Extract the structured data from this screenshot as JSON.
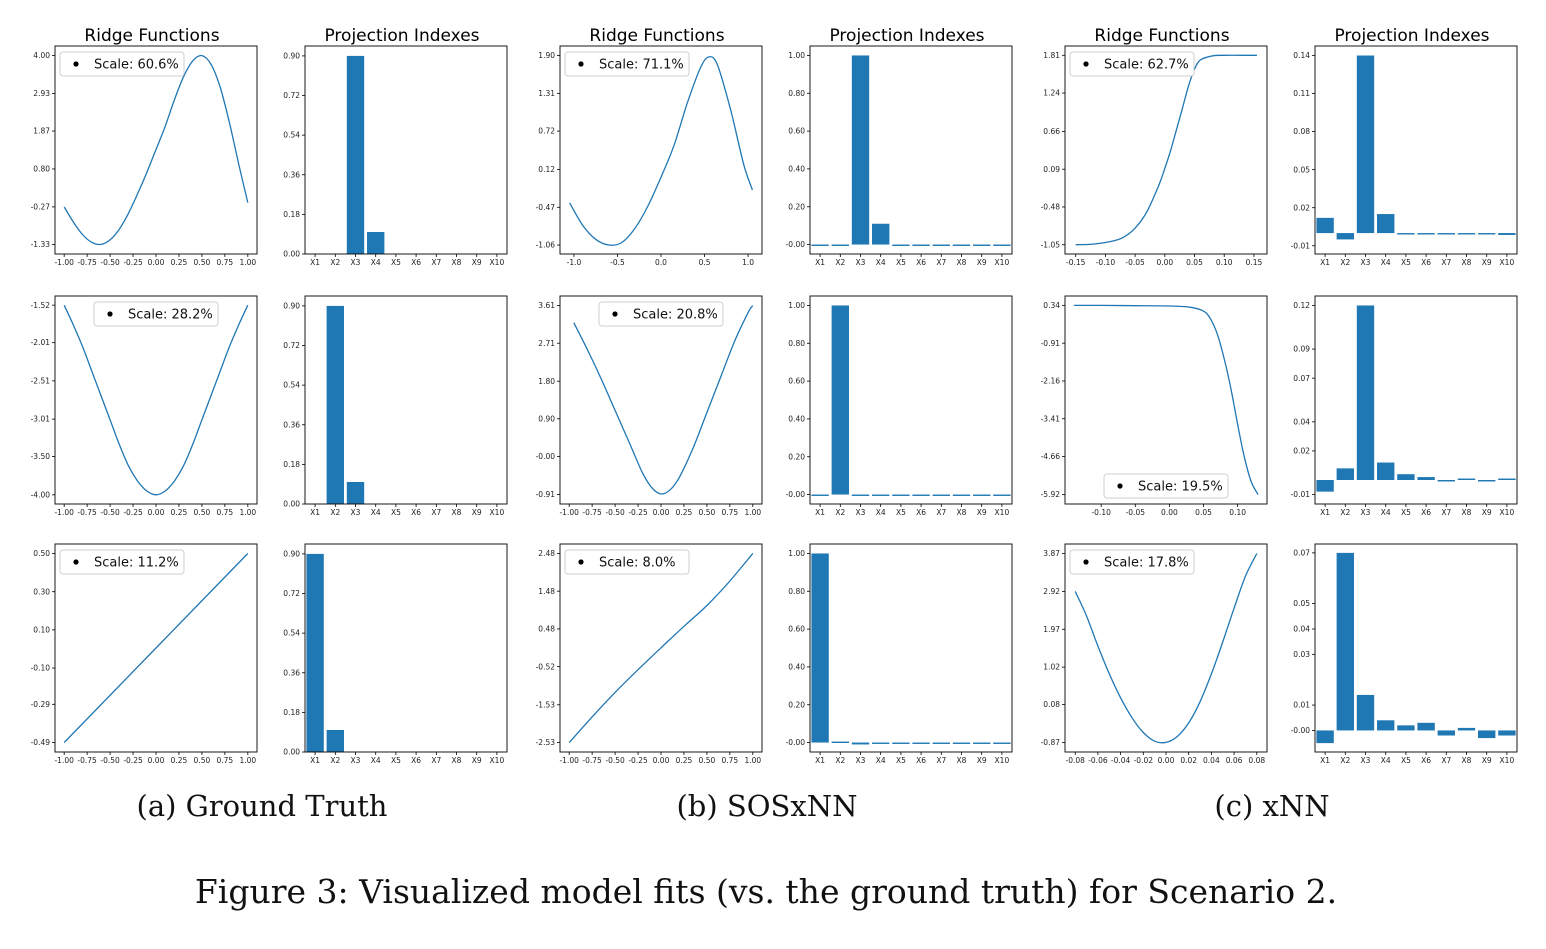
{
  "figure": {
    "caption": "Figure 3: Visualized model fits (vs. the ground truth) for Scenario 2.",
    "subcaptions": [
      "(a) Ground Truth",
      "(b) SOSxNN",
      "(c) xNN"
    ],
    "column_titles": [
      "Ridge Functions",
      "Projection Indexes",
      "Ridge Functions",
      "Projection Indexes",
      "Ridge Functions",
      "Projection Indexes"
    ]
  },
  "chart_data": [
    {
      "id": "gt-r1-ridge",
      "type": "line",
      "shape": "peak",
      "title": "Ridge Functions",
      "legend": "Scale: 60.6%",
      "legend_pos": "top-left",
      "x": [
        -1.0,
        -0.9,
        -0.8,
        -0.7,
        -0.6,
        -0.5,
        -0.4,
        -0.3,
        -0.2,
        -0.1,
        0.0,
        0.1,
        0.2,
        0.3,
        0.4,
        0.5,
        0.6,
        0.7,
        0.8,
        0.9,
        1.0
      ],
      "y": [
        -0.27,
        -0.7,
        -1.05,
        -1.27,
        -1.33,
        -1.2,
        -0.9,
        -0.45,
        0.1,
        0.7,
        1.35,
        2.0,
        2.75,
        3.4,
        3.85,
        4.0,
        3.75,
        3.1,
        2.1,
        0.95,
        -0.15
      ],
      "xticks": [
        -1.0,
        -0.75,
        -0.5,
        -0.25,
        0.0,
        0.25,
        0.5,
        0.75,
        1.0
      ],
      "xtick_labels": [
        "-1.00",
        "-0.75",
        "-0.50",
        "-0.25",
        "0.00",
        "0.25",
        "0.50",
        "0.75",
        "1.00"
      ],
      "yticks": [
        -1.33,
        -0.27,
        0.8,
        1.87,
        2.93,
        4.0
      ],
      "ytick_labels": [
        "-1.33",
        "-0.27",
        "0.80",
        "1.87",
        "2.93",
        "4.00"
      ],
      "xlim": [
        -1.1,
        1.1
      ],
      "ylim": [
        -1.6,
        4.27
      ]
    },
    {
      "id": "gt-r1-proj",
      "type": "bar",
      "title": "Projection Indexes",
      "categories": [
        "X1",
        "X2",
        "X3",
        "X4",
        "X5",
        "X6",
        "X7",
        "X8",
        "X9",
        "X10"
      ],
      "values": [
        0,
        0,
        0.9,
        0.1,
        0,
        0,
        0,
        0,
        0,
        0
      ],
      "yticks": [
        0.0,
        0.18,
        0.36,
        0.54,
        0.72,
        0.9
      ],
      "ytick_labels": [
        "0.00",
        "0.18",
        "0.36",
        "0.54",
        "0.72",
        "0.90"
      ],
      "ylim": [
        0,
        0.945
      ]
    },
    {
      "id": "sos-r1-ridge",
      "type": "line",
      "shape": "peak",
      "title": "Ridge Functions",
      "legend": "Scale: 71.1%",
      "legend_pos": "top-left",
      "x": [
        -1.05,
        -0.9,
        -0.75,
        -0.6,
        -0.45,
        -0.3,
        -0.15,
        0.0,
        0.15,
        0.3,
        0.45,
        0.55,
        0.65,
        0.8,
        0.95,
        1.05
      ],
      "y": [
        -0.4,
        -0.75,
        -0.97,
        -1.06,
        -1.02,
        -0.8,
        -0.45,
        0.0,
        0.5,
        1.15,
        1.7,
        1.88,
        1.75,
        1.05,
        0.2,
        -0.2
      ],
      "xticks": [
        -1.0,
        -0.5,
        0.0,
        0.5,
        1.0
      ],
      "xtick_labels": [
        "-1.0",
        "-0.5",
        "0.0",
        "0.5",
        "1.0"
      ],
      "yticks": [
        -1.06,
        -0.47,
        0.12,
        0.72,
        1.31,
        1.9
      ],
      "ytick_labels": [
        "-1.06",
        "-0.47",
        "0.12",
        "0.72",
        "1.31",
        "1.90"
      ],
      "xlim": [
        -1.16,
        1.16
      ],
      "ylim": [
        -1.2,
        2.05
      ]
    },
    {
      "id": "sos-r1-proj",
      "type": "bar",
      "title": "Projection Indexes",
      "categories": [
        "X1",
        "X2",
        "X3",
        "X4",
        "X5",
        "X6",
        "X7",
        "X8",
        "X9",
        "X10"
      ],
      "values": [
        0,
        0,
        1.0,
        0.11,
        0,
        0,
        0,
        0,
        0,
        0
      ],
      "yticks": [
        0.0,
        0.2,
        0.4,
        0.6,
        0.8,
        1.0
      ],
      "ytick_labels": [
        "-0.00",
        "0.20",
        "0.40",
        "0.60",
        "0.80",
        "1.00"
      ],
      "ylim": [
        -0.05,
        1.05
      ]
    },
    {
      "id": "xnn-r1-ridge",
      "type": "line",
      "shape": "sigmoid",
      "title": "Ridge Functions",
      "legend": "Scale: 62.7%",
      "legend_pos": "top-left",
      "x": [
        -0.15,
        -0.12,
        -0.09,
        -0.07,
        -0.05,
        -0.03,
        -0.01,
        0.0,
        0.01,
        0.02,
        0.03,
        0.04,
        0.05,
        0.06,
        0.08,
        0.1,
        0.13,
        0.155
      ],
      "y": [
        -1.05,
        -1.04,
        -1.0,
        -0.94,
        -0.8,
        -0.55,
        -0.15,
        0.1,
        0.38,
        0.7,
        1.02,
        1.35,
        1.6,
        1.74,
        1.8,
        1.81,
        1.81,
        1.81
      ],
      "xticks": [
        -0.15,
        -0.1,
        -0.05,
        0.0,
        0.05,
        0.1,
        0.15
      ],
      "xtick_labels": [
        "-0.15",
        "-0.10",
        "-0.05",
        "0.00",
        "0.05",
        "0.10",
        "0.15"
      ],
      "yticks": [
        -1.05,
        -0.48,
        0.09,
        0.66,
        1.24,
        1.81
      ],
      "ytick_labels": [
        "-1.05",
        "-0.48",
        "0.09",
        "0.66",
        "1.24",
        "1.81"
      ],
      "xlim": [
        -0.168,
        0.172
      ],
      "ylim": [
        -1.19,
        1.95
      ]
    },
    {
      "id": "xnn-r1-proj",
      "type": "bar",
      "title": "Projection Indexes",
      "categories": [
        "X1",
        "X2",
        "X3",
        "X4",
        "X5",
        "X6",
        "X7",
        "X8",
        "X9",
        "X10"
      ],
      "values": [
        0.012,
        -0.005,
        0.14,
        0.015,
        -0.001,
        -0.001,
        -0.0005,
        -0.001,
        -0.0005,
        -0.0015
      ],
      "yticks": [
        -0.01,
        0.02,
        0.05,
        0.08,
        0.11,
        0.14
      ],
      "ytick_labels": [
        "-0.01",
        "0.02",
        "0.05",
        "0.08",
        "0.11",
        "0.14"
      ],
      "ylim": [
        -0.0165,
        0.1475
      ]
    },
    {
      "id": "gt-r2-ridge",
      "type": "line",
      "shape": "valley",
      "title": "",
      "legend": "Scale: 28.2%",
      "legend_pos": "upper-center",
      "x": [
        -1.0,
        -0.9,
        -0.8,
        -0.7,
        -0.6,
        -0.5,
        -0.4,
        -0.3,
        -0.2,
        -0.1,
        0.0,
        0.1,
        0.2,
        0.3,
        0.4,
        0.5,
        0.6,
        0.7,
        0.8,
        0.9,
        1.0
      ],
      "y": [
        -1.52,
        -1.78,
        -2.06,
        -2.38,
        -2.7,
        -3.02,
        -3.34,
        -3.62,
        -3.82,
        -3.95,
        -4.0,
        -3.95,
        -3.82,
        -3.62,
        -3.34,
        -3.02,
        -2.7,
        -2.38,
        -2.06,
        -1.78,
        -1.52
      ],
      "xticks": [
        -1.0,
        -0.75,
        -0.5,
        -0.25,
        0.0,
        0.25,
        0.5,
        0.75,
        1.0
      ],
      "xtick_labels": [
        "-1.00",
        "-0.75",
        "-0.50",
        "-0.25",
        "0.00",
        "0.25",
        "0.50",
        "0.75",
        "1.00"
      ],
      "yticks": [
        -4.0,
        -3.5,
        -3.01,
        -2.51,
        -2.01,
        -1.52
      ],
      "ytick_labels": [
        "-4.00",
        "-3.50",
        "-3.01",
        "-2.51",
        "-2.01",
        "-1.52"
      ],
      "xlim": [
        -1.1,
        1.1
      ],
      "ylim": [
        -4.12,
        -1.4
      ]
    },
    {
      "id": "gt-r2-proj",
      "type": "bar",
      "title": "",
      "categories": [
        "X1",
        "X2",
        "X3",
        "X4",
        "X5",
        "X6",
        "X7",
        "X8",
        "X9",
        "X10"
      ],
      "values": [
        0,
        0.9,
        0.1,
        0,
        0,
        0,
        0,
        0,
        0,
        0
      ],
      "yticks": [
        0.0,
        0.18,
        0.36,
        0.54,
        0.72,
        0.9
      ],
      "ytick_labels": [
        "0.00",
        "0.18",
        "0.36",
        "0.54",
        "0.72",
        "0.90"
      ],
      "ylim": [
        0,
        0.945
      ]
    },
    {
      "id": "sos-r2-ridge",
      "type": "line",
      "shape": "valley",
      "title": "",
      "legend": "Scale: 20.8%",
      "legend_pos": "upper-center",
      "x": [
        -0.95,
        -0.8,
        -0.65,
        -0.5,
        -0.35,
        -0.2,
        -0.1,
        0.0,
        0.1,
        0.2,
        0.35,
        0.5,
        0.65,
        0.8,
        0.95,
        1.0
      ],
      "y": [
        3.2,
        2.55,
        1.85,
        1.1,
        0.35,
        -0.4,
        -0.75,
        -0.9,
        -0.8,
        -0.5,
        0.2,
        1.05,
        1.9,
        2.75,
        3.45,
        3.61
      ],
      "xticks": [
        -1.0,
        -0.75,
        -0.5,
        -0.25,
        0.0,
        0.25,
        0.5,
        0.75,
        1.0
      ],
      "xtick_labels": [
        "-1.00",
        "-0.75",
        "-0.50",
        "-0.25",
        "0.00",
        "0.25",
        "0.50",
        "0.75",
        "1.00"
      ],
      "yticks": [
        -0.91,
        0.0,
        0.9,
        1.8,
        2.71,
        3.61
      ],
      "ytick_labels": [
        "-0.91",
        "-0.00",
        "0.90",
        "1.80",
        "2.71",
        "3.61"
      ],
      "xlim": [
        -1.1,
        1.1
      ],
      "ylim": [
        -1.14,
        3.84
      ]
    },
    {
      "id": "sos-r2-proj",
      "type": "bar",
      "title": "",
      "categories": [
        "X1",
        "X2",
        "X3",
        "X4",
        "X5",
        "X6",
        "X7",
        "X8",
        "X9",
        "X10"
      ],
      "values": [
        0,
        1.0,
        0,
        0,
        0,
        0,
        0,
        0,
        0,
        0
      ],
      "yticks": [
        0.0,
        0.2,
        0.4,
        0.6,
        0.8,
        1.0
      ],
      "ytick_labels": [
        "-0.00",
        "0.20",
        "0.40",
        "0.60",
        "0.80",
        "1.00"
      ],
      "ylim": [
        -0.05,
        1.05
      ]
    },
    {
      "id": "xnn-r2-ridge",
      "type": "line",
      "shape": "reverse-sigmoid",
      "title": "",
      "legend": "Scale: 19.5%",
      "legend_pos": "lower-center",
      "x": [
        -0.14,
        -0.1,
        -0.05,
        0.0,
        0.03,
        0.05,
        0.06,
        0.07,
        0.08,
        0.09,
        0.1,
        0.11,
        0.12,
        0.13
      ],
      "y": [
        0.34,
        0.34,
        0.33,
        0.32,
        0.28,
        0.15,
        -0.1,
        -0.6,
        -1.4,
        -2.4,
        -3.6,
        -4.7,
        -5.5,
        -5.92
      ],
      "xticks": [
        -0.1,
        -0.05,
        0.0,
        0.05,
        0.1
      ],
      "xtick_labels": [
        "-0.10",
        "-0.05",
        "0.00",
        "0.05",
        "0.10"
      ],
      "yticks": [
        -5.92,
        -4.66,
        -3.41,
        -2.16,
        -0.91,
        0.34
      ],
      "ytick_labels": [
        "-5.92",
        "-4.66",
        "-3.41",
        "-2.16",
        "-0.91",
        "0.34"
      ],
      "xlim": [
        -0.153,
        0.143
      ],
      "ylim": [
        -6.23,
        0.65
      ]
    },
    {
      "id": "xnn-r2-proj",
      "type": "bar",
      "title": "",
      "categories": [
        "X1",
        "X2",
        "X3",
        "X4",
        "X5",
        "X6",
        "X7",
        "X8",
        "X9",
        "X10"
      ],
      "values": [
        -0.008,
        0.008,
        0.12,
        0.012,
        0.004,
        0.002,
        -0.001,
        0.001,
        -0.001,
        0.001
      ],
      "yticks": [
        -0.01,
        0.02,
        0.04,
        0.07,
        0.09,
        0.12
      ],
      "ytick_labels": [
        "-0.01",
        "0.02",
        "0.04",
        "0.07",
        "0.09",
        "0.12"
      ],
      "ylim": [
        -0.0165,
        0.1265
      ]
    },
    {
      "id": "gt-r3-ridge",
      "type": "line",
      "shape": "linear",
      "title": "",
      "legend": "Scale: 11.2%",
      "legend_pos": "top-left",
      "x": [
        -1.0,
        1.0
      ],
      "y": [
        -0.49,
        0.5
      ],
      "xticks": [
        -1.0,
        -0.75,
        -0.5,
        -0.25,
        0.0,
        0.25,
        0.5,
        0.75,
        1.0
      ],
      "xtick_labels": [
        "-1.00",
        "-0.75",
        "-0.50",
        "-0.25",
        "0.00",
        "0.25",
        "0.50",
        "0.75",
        "1.00"
      ],
      "yticks": [
        -0.49,
        -0.29,
        -0.1,
        0.1,
        0.3,
        0.5
      ],
      "ytick_labels": [
        "-0.49",
        "-0.29",
        "-0.10",
        "0.10",
        "0.30",
        "0.50"
      ],
      "xlim": [
        -1.1,
        1.1
      ],
      "ylim": [
        -0.54,
        0.55
      ]
    },
    {
      "id": "gt-r3-proj",
      "type": "bar",
      "title": "",
      "categories": [
        "X1",
        "X2",
        "X3",
        "X4",
        "X5",
        "X6",
        "X7",
        "X8",
        "X9",
        "X10"
      ],
      "values": [
        0.9,
        0.1,
        0,
        0,
        0,
        0,
        0,
        0,
        0,
        0
      ],
      "yticks": [
        0.0,
        0.18,
        0.36,
        0.54,
        0.72,
        0.9
      ],
      "ytick_labels": [
        "0.00",
        "0.18",
        "0.36",
        "0.54",
        "0.72",
        "0.90"
      ],
      "ylim": [
        0,
        0.945
      ]
    },
    {
      "id": "sos-r3-ridge",
      "type": "line",
      "shape": "linear",
      "title": "",
      "legend": "Scale: 8.0%",
      "legend_pos": "top-left",
      "x": [
        -1.0,
        -0.75,
        -0.5,
        -0.25,
        0.0,
        0.25,
        0.5,
        0.75,
        1.0
      ],
      "y": [
        -2.53,
        -1.85,
        -1.2,
        -0.6,
        -0.02,
        0.55,
        1.1,
        1.75,
        2.48
      ],
      "xticks": [
        -1.0,
        -0.75,
        -0.5,
        -0.25,
        0.0,
        0.25,
        0.5,
        0.75,
        1.0
      ],
      "xtick_labels": [
        "-1.00",
        "-0.75",
        "-0.50",
        "-0.25",
        "0.00",
        "0.25",
        "0.50",
        "0.75",
        "1.00"
      ],
      "yticks": [
        -2.53,
        -1.53,
        -0.52,
        0.48,
        1.48,
        2.48
      ],
      "ytick_labels": [
        "-2.53",
        "-1.53",
        "-0.52",
        "0.48",
        "1.48",
        "2.48"
      ],
      "xlim": [
        -1.1,
        1.1
      ],
      "ylim": [
        -2.78,
        2.73
      ]
    },
    {
      "id": "sos-r3-proj",
      "type": "bar",
      "title": "",
      "categories": [
        "X1",
        "X2",
        "X3",
        "X4",
        "X5",
        "X6",
        "X7",
        "X8",
        "X9",
        "X10"
      ],
      "values": [
        1.0,
        0.005,
        -0.01,
        0,
        0,
        0,
        0,
        0,
        0,
        0
      ],
      "yticks": [
        0.0,
        0.2,
        0.4,
        0.6,
        0.8,
        1.0
      ],
      "ytick_labels": [
        "-0.00",
        "0.20",
        "0.40",
        "0.60",
        "0.80",
        "1.00"
      ],
      "ylim": [
        -0.05,
        1.05
      ]
    },
    {
      "id": "xnn-r3-ridge",
      "type": "line",
      "shape": "valley",
      "title": "",
      "legend": "Scale: 17.8%",
      "legend_pos": "top-left",
      "x": [
        -0.08,
        -0.07,
        -0.06,
        -0.05,
        -0.04,
        -0.03,
        -0.02,
        -0.01,
        0.0,
        0.01,
        0.02,
        0.03,
        0.04,
        0.05,
        0.06,
        0.07,
        0.08
      ],
      "y": [
        2.92,
        2.3,
        1.55,
        0.85,
        0.25,
        -0.25,
        -0.62,
        -0.84,
        -0.87,
        -0.72,
        -0.38,
        0.15,
        0.85,
        1.65,
        2.5,
        3.3,
        3.87
      ],
      "xticks": [
        -0.08,
        -0.06,
        -0.04,
        -0.02,
        0.0,
        0.02,
        0.04,
        0.06,
        0.08
      ],
      "xtick_labels": [
        "-0.08",
        "-0.06",
        "-0.04",
        "-0.02",
        "0.00",
        "0.02",
        "0.04",
        "0.06",
        "0.08"
      ],
      "yticks": [
        -0.87,
        0.08,
        1.02,
        1.97,
        2.92,
        3.87
      ],
      "ytick_labels": [
        "-0.87",
        "0.08",
        "1.02",
        "1.97",
        "2.92",
        "3.87"
      ],
      "xlim": [
        -0.089,
        0.089
      ],
      "ylim": [
        -1.11,
        4.11
      ]
    },
    {
      "id": "xnn-r3-proj",
      "type": "bar",
      "title": "",
      "categories": [
        "X1",
        "X2",
        "X3",
        "X4",
        "X5",
        "X6",
        "X7",
        "X8",
        "X9",
        "X10"
      ],
      "values": [
        -0.005,
        0.07,
        0.014,
        0.004,
        0.002,
        0.003,
        -0.002,
        0.001,
        -0.003,
        -0.002
      ],
      "yticks": [
        0.0,
        0.01,
        0.03,
        0.04,
        0.05,
        0.07
      ],
      "ytick_labels": [
        "-0.00",
        "0.01",
        "0.03",
        "0.04",
        "0.05",
        "0.07"
      ],
      "ylim": [
        -0.0085,
        0.0735
      ]
    }
  ]
}
